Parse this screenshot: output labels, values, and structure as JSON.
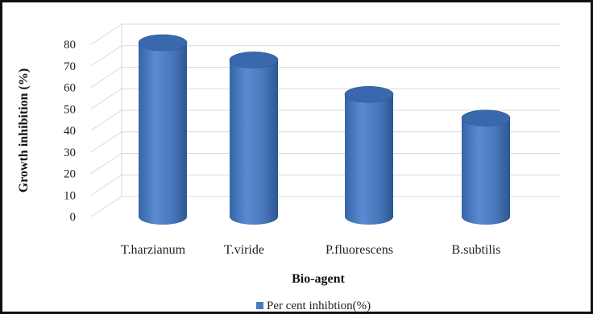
{
  "chart_data": {
    "type": "bar",
    "style": "3d-cylinder",
    "categories": [
      "T.harzianum",
      "T.viride",
      "P.fluorescens",
      "B.subtilis"
    ],
    "series": [
      {
        "name": "Per cent inhibtion(%)",
        "values": [
          74,
          66,
          50,
          39
        ]
      }
    ],
    "y_ticks": [
      "0",
      "10",
      "20",
      "30",
      "40",
      "50",
      "60",
      "70",
      "80"
    ],
    "xlabel": "Bio-agent",
    "ylabel": "Growth  inhibition (%)",
    "ylim": [
      0,
      80
    ],
    "grid": true,
    "legend_position": "bottom",
    "colors": {
      "bar": "#4a7ac0",
      "bar_dark": "#2c5793",
      "bar_top": "#3a68ad",
      "grid": "#d9d9d9"
    }
  }
}
